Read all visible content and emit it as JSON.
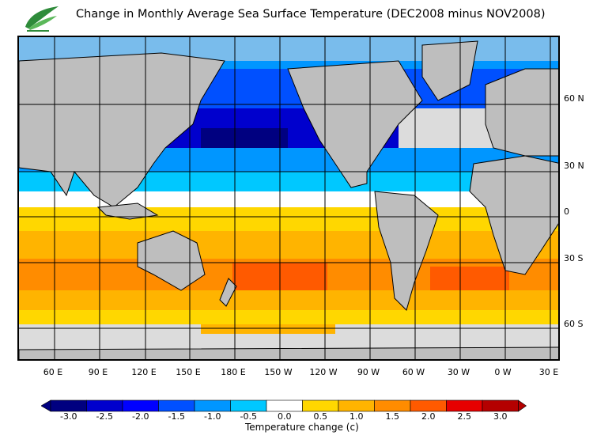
{
  "title": "Change in Monthly Average Sea Surface Temperature (DEC2008 minus NOV2008)",
  "logo": {
    "icon": "leaf-logo-icon",
    "color": "#2e8b3a"
  },
  "lat_labels": [
    "60 N",
    "30 N",
    "0",
    "30 S",
    "60 S"
  ],
  "lon_labels": [
    "60 E",
    "90 E",
    "120 E",
    "150 E",
    "180 E",
    "150 W",
    "120 W",
    "90 W",
    "60 W",
    "30 W",
    "0 W",
    "30 E"
  ],
  "colorbar": {
    "ticks": [
      "-3.0",
      "-2.5",
      "-2.0",
      "-1.5",
      "-1.0",
      "-0.5",
      "0.0",
      "0.5",
      "1.0",
      "1.5",
      "2.0",
      "2.5",
      "3.0"
    ],
    "colors": [
      "#000080",
      "#0000cd",
      "#0000ff",
      "#0050ff",
      "#0096ff",
      "#00c8ff",
      "#ffffff",
      "#ffd700",
      "#ffb400",
      "#ff8c00",
      "#ff5a00",
      "#e60000",
      "#b40000"
    ],
    "label": "Temperature change  (c)"
  },
  "map_colors": {
    "land": "#bebebe",
    "ice": "#dcdcdc",
    "coast": "#000000",
    "grid": "#000000"
  }
}
